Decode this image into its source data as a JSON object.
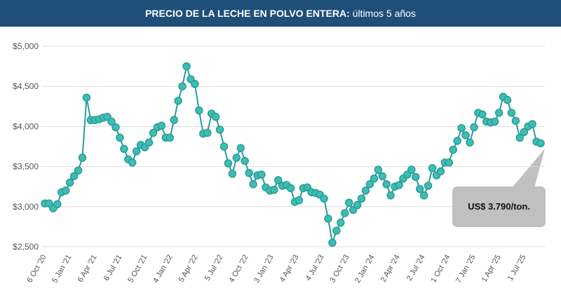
{
  "chart_data": {
    "type": "line",
    "title_bold": "PRECIO DE LA LECHE EN POLVO ENTERA:",
    "title_rest": " últimos 5 años",
    "ylabel": "",
    "xlabel": "",
    "ylim": [
      2500,
      5000
    ],
    "yticks": [
      "$5,000",
      "$4,500",
      "$4,000",
      "$3,500",
      "$3,000",
      "$2,500"
    ],
    "ytick_values": [
      5000,
      4500,
      4000,
      3500,
      3000,
      2500
    ],
    "xtick_labels": [
      "6 Oct '20",
      "5 Jan '21",
      "6 Apr '21",
      "6 Jul '21",
      "5 Oct '21",
      "4 Jan '22",
      "5 Apr '22",
      "5 Jul '22",
      "4 Oct '22",
      "3 Jan '23",
      "4 Apr '23",
      "4 Jul '23",
      "3 Oct '23",
      "2 Jan '24",
      "2 Apr '24",
      "2 Jul '24",
      "1 Oct '24",
      "7 Jan '25",
      "1 Apr '25",
      "1 Jul '25"
    ],
    "values": [
      3040,
      3040,
      2980,
      3030,
      3180,
      3200,
      3300,
      3380,
      3450,
      3610,
      4360,
      4080,
      4080,
      4090,
      4110,
      4120,
      4060,
      3990,
      3860,
      3720,
      3590,
      3550,
      3690,
      3770,
      3740,
      3800,
      3920,
      3990,
      4010,
      3860,
      3860,
      4080,
      4320,
      4500,
      4750,
      4590,
      4530,
      4200,
      3910,
      3920,
      4160,
      4120,
      3960,
      3750,
      3540,
      3410,
      3610,
      3730,
      3570,
      3420,
      3280,
      3390,
      3400,
      3240,
      3200,
      3210,
      3330,
      3260,
      3270,
      3230,
      3060,
      3080,
      3230,
      3240,
      3180,
      3170,
      3150,
      3100,
      2850,
      2550,
      2700,
      2800,
      2920,
      3050,
      2960,
      3020,
      3100,
      3200,
      3280,
      3350,
      3460,
      3380,
      3280,
      3140,
      3250,
      3270,
      3350,
      3400,
      3460,
      3370,
      3220,
      3140,
      3260,
      3480,
      3390,
      3440,
      3550,
      3550,
      3710,
      3820,
      3980,
      3890,
      3800,
      3990,
      4170,
      4150,
      4060,
      4050,
      4060,
      4170,
      4370,
      4330,
      4170,
      4070,
      3860,
      3930,
      4000,
      4030,
      3810,
      3790
    ],
    "line_color": "#2a9d95",
    "marker_color": "#3dbdb5",
    "annotation": "US$ 3.790/ton.",
    "grid": true
  }
}
